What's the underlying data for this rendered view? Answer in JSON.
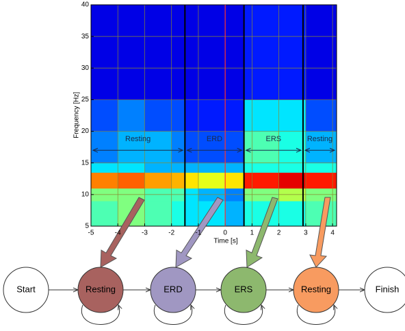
{
  "chart_data": {
    "type": "heatmap",
    "xlabel": "Time [s]",
    "ylabel": "Frequency [Hz]",
    "xlim": [
      -5,
      4.15
    ],
    "ylim": [
      5,
      40
    ],
    "xticks": [
      -5,
      -4,
      -3,
      -2,
      -1,
      0,
      1,
      2,
      3,
      4
    ],
    "yticks": [
      5,
      10,
      15,
      20,
      25,
      30,
      35,
      40
    ],
    "grid": true,
    "colormap": "jet",
    "x_edges": [
      -5,
      -4,
      -3,
      -2,
      -1.5,
      -1,
      0,
      0.7,
      2,
      3,
      4.15
    ],
    "y_edges": [
      5,
      9,
      11,
      13.5,
      15,
      20,
      25,
      40
    ],
    "z": [
      [
        0.45,
        0.5,
        0.45,
        0.4,
        0.35,
        0.35,
        0.3,
        0.4,
        0.4,
        0.45
      ],
      [
        0.5,
        0.5,
        0.45,
        0.45,
        0.35,
        0.3,
        0.25,
        0.5,
        0.55,
        0.5
      ],
      [
        0.75,
        0.78,
        0.72,
        0.7,
        0.65,
        0.6,
        0.65,
        0.85,
        0.9,
        0.85
      ],
      [
        0.35,
        0.35,
        0.3,
        0.3,
        0.3,
        0.3,
        0.3,
        0.4,
        0.4,
        0.4
      ],
      [
        0.25,
        0.3,
        0.3,
        0.25,
        0.2,
        0.2,
        0.2,
        0.45,
        0.4,
        0.3
      ],
      [
        0.2,
        0.25,
        0.2,
        0.2,
        0.15,
        0.15,
        0.15,
        0.35,
        0.35,
        0.2
      ],
      [
        0.1,
        0.1,
        0.1,
        0.1,
        0.1,
        0.1,
        0.1,
        0.15,
        0.15,
        0.1
      ]
    ],
    "markers": [
      {
        "value": -1.5,
        "color": "#000000"
      },
      {
        "value": 0,
        "color": "#ff3030"
      },
      {
        "value": 0.7,
        "color": "#000000"
      },
      {
        "value": 2.9,
        "color": "#000000"
      }
    ],
    "annotations": [
      {
        "text": "Resting",
        "from": -5,
        "to": -1.5,
        "y": 17
      },
      {
        "text": "ERD",
        "from": -1.5,
        "to": 0.7,
        "y": 17
      },
      {
        "text": "ERS",
        "from": 0.7,
        "to": 2.9,
        "y": 17
      },
      {
        "text": "Resting",
        "from": 2.9,
        "to": 4.15,
        "y": 17
      }
    ]
  },
  "diagram": {
    "nodes": [
      {
        "label": "Start",
        "color": "#ffffff"
      },
      {
        "label": "Resting",
        "color": "#a8625f"
      },
      {
        "label": "ERD",
        "color": "#a097c2"
      },
      {
        "label": "ERS",
        "color": "#8db86e"
      },
      {
        "label": "Resting",
        "color": "#f89b60"
      },
      {
        "label": "Finish",
        "color": "#ffffff"
      }
    ]
  }
}
